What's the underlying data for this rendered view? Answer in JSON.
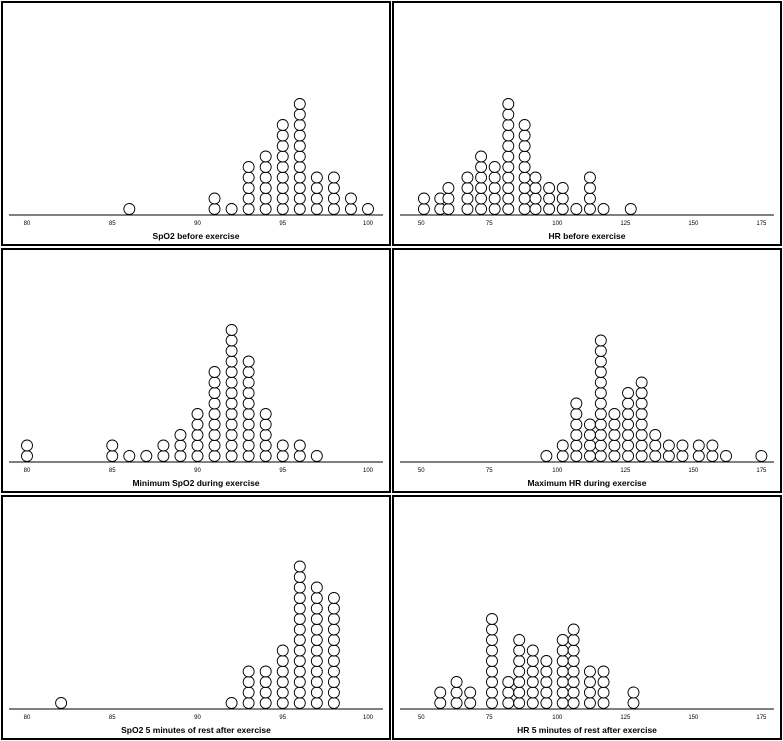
{
  "chart_data": [
    {
      "type": "dot",
      "xlabel": "SpO2 before exercise",
      "xlim": [
        80,
        100
      ],
      "ticks": [
        80,
        85,
        90,
        95,
        100
      ],
      "bin": 1,
      "points": [
        [
          86,
          1
        ],
        [
          91,
          2
        ],
        [
          92,
          1
        ],
        [
          93,
          5
        ],
        [
          94,
          6
        ],
        [
          95,
          9
        ],
        [
          96,
          11
        ],
        [
          97,
          4
        ],
        [
          98,
          4
        ],
        [
          99,
          2
        ],
        [
          100,
          1
        ]
      ]
    },
    {
      "type": "dot",
      "xlabel": "HR before exercise",
      "xlim": [
        40,
        180
      ],
      "ticks": [
        50,
        75,
        100,
        125,
        150,
        175
      ],
      "bin": 3.5,
      "points": [
        [
          51,
          2
        ],
        [
          57,
          2
        ],
        [
          60,
          3
        ],
        [
          67,
          4
        ],
        [
          72,
          6
        ],
        [
          77,
          5
        ],
        [
          82,
          11
        ],
        [
          88,
          9
        ],
        [
          92,
          4
        ],
        [
          97,
          3
        ],
        [
          102,
          3
        ],
        [
          107,
          1
        ],
        [
          112,
          4
        ],
        [
          117,
          1
        ],
        [
          127,
          1
        ]
      ]
    },
    {
      "type": "dot",
      "xlabel": "Minimum SpO2 during exercise",
      "xlim": [
        80,
        100
      ],
      "ticks": [
        80,
        85,
        90,
        95,
        100
      ],
      "bin": 1,
      "points": [
        [
          80,
          2
        ],
        [
          85,
          2
        ],
        [
          86,
          1
        ],
        [
          87,
          1
        ],
        [
          88,
          2
        ],
        [
          89,
          3
        ],
        [
          90,
          5
        ],
        [
          91,
          9
        ],
        [
          92,
          13
        ],
        [
          93,
          10
        ],
        [
          94,
          5
        ],
        [
          95,
          2
        ],
        [
          96,
          2
        ],
        [
          97,
          1
        ]
      ]
    },
    {
      "type": "dot",
      "xlabel": "Maximum HR during exercise",
      "xlim": [
        40,
        180
      ],
      "ticks": [
        50,
        75,
        100,
        125,
        150,
        175
      ],
      "bin": 3.5,
      "points": [
        [
          96,
          1
        ],
        [
          102,
          2
        ],
        [
          107,
          6
        ],
        [
          112,
          4
        ],
        [
          116,
          12
        ],
        [
          121,
          5
        ],
        [
          126,
          7
        ],
        [
          131,
          8
        ],
        [
          136,
          3
        ],
        [
          141,
          2
        ],
        [
          146,
          2
        ],
        [
          152,
          2
        ],
        [
          157,
          2
        ],
        [
          162,
          1
        ],
        [
          175,
          1
        ]
      ]
    },
    {
      "type": "dot",
      "xlabel": "SpO2 5 minutes of rest after exercise",
      "xlim": [
        80,
        100
      ],
      "ticks": [
        80,
        85,
        90,
        95,
        100
      ],
      "bin": 1,
      "points": [
        [
          82,
          1
        ],
        [
          92,
          1
        ],
        [
          93,
          4
        ],
        [
          94,
          4
        ],
        [
          95,
          6
        ],
        [
          96,
          14
        ],
        [
          97,
          12
        ],
        [
          98,
          11
        ]
      ]
    },
    {
      "type": "dot",
      "xlabel": "HR 5 minutes of rest after exercise",
      "xlim": [
        40,
        180
      ],
      "ticks": [
        50,
        75,
        100,
        125,
        150,
        175
      ],
      "bin": 3.5,
      "points": [
        [
          57,
          2
        ],
        [
          63,
          3
        ],
        [
          68,
          2
        ],
        [
          76,
          9
        ],
        [
          82,
          3
        ],
        [
          86,
          7
        ],
        [
          91,
          6
        ],
        [
          96,
          5
        ],
        [
          102,
          7
        ],
        [
          106,
          8
        ],
        [
          112,
          4
        ],
        [
          117,
          4
        ],
        [
          128,
          2
        ]
      ]
    }
  ]
}
